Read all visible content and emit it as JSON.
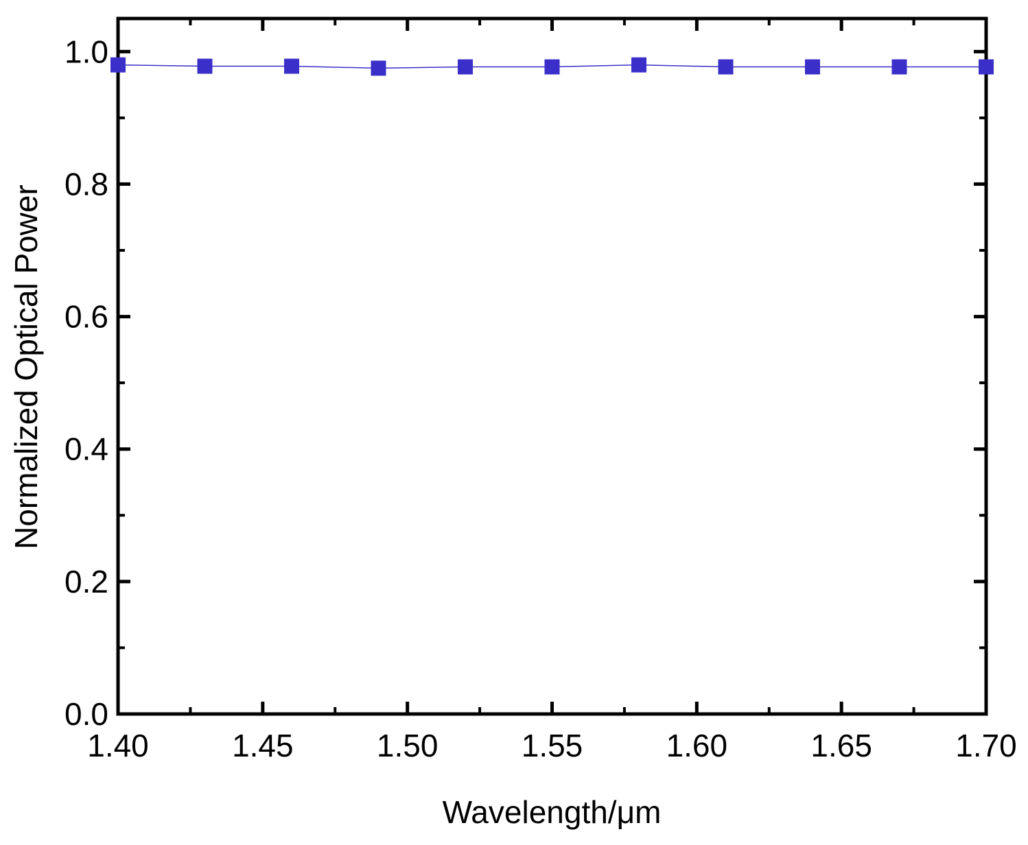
{
  "chart_data": {
    "type": "line",
    "x_label": "Wavelength/μm",
    "y_label": "Normalized Optical Power",
    "x": [
      1.4,
      1.43,
      1.46,
      1.49,
      1.52,
      1.55,
      1.58,
      1.61,
      1.64,
      1.67,
      1.7
    ],
    "series": [
      {
        "name": "Normalized Optical Power",
        "color": "#3a2fc8",
        "values": [
          0.98,
          0.978,
          0.978,
          0.975,
          0.977,
          0.977,
          0.98,
          0.977,
          0.977,
          0.977,
          0.977
        ]
      }
    ],
    "xlim": [
      1.4,
      1.7
    ],
    "ylim": [
      0,
      1.05
    ],
    "xticks": [
      {
        "value": 1.4,
        "label": "1.40"
      },
      {
        "value": 1.45,
        "label": "1.45"
      },
      {
        "value": 1.5,
        "label": "1.50"
      },
      {
        "value": 1.55,
        "label": "1.55"
      },
      {
        "value": 1.6,
        "label": "1.60"
      },
      {
        "value": 1.65,
        "label": "1.65"
      },
      {
        "value": 1.7,
        "label": "1.70"
      }
    ],
    "yticks": [
      {
        "value": 0,
        "label": "0.0"
      },
      0.2,
      0.4,
      0.6,
      0.8,
      {
        "value": 1,
        "label": "1.0"
      }
    ],
    "grid": false
  }
}
